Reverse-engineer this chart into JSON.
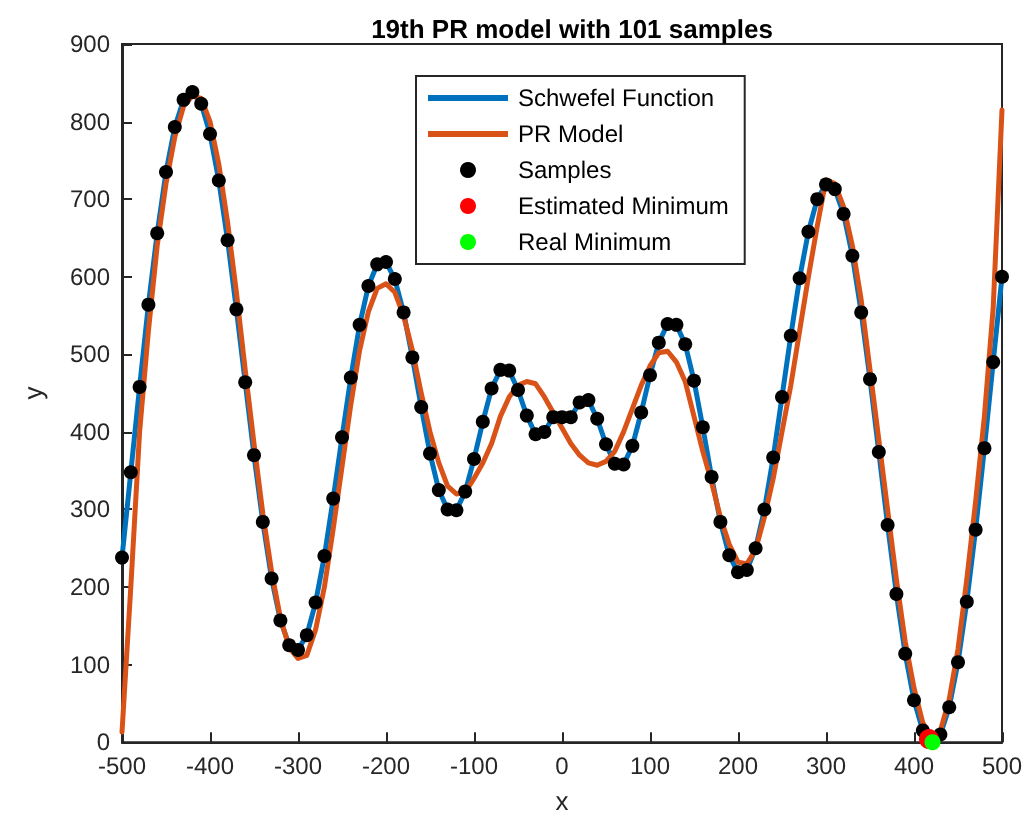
{
  "chart_data": {
    "type": "line",
    "title": "19th PR model with 101 samples",
    "xlabel": "x",
    "ylabel": "y",
    "x": [
      -500,
      -490,
      -480,
      -470,
      -460,
      -450,
      -440,
      -430,
      -420,
      -410,
      -400,
      -390,
      -380,
      -370,
      -360,
      -350,
      -340,
      -330,
      -320,
      -310,
      -300,
      -290,
      -280,
      -270,
      -260,
      -250,
      -240,
      -230,
      -220,
      -210,
      -200,
      -190,
      -180,
      -170,
      -160,
      -150,
      -140,
      -130,
      -120,
      -110,
      -100,
      -90,
      -80,
      -70,
      -60,
      -50,
      -40,
      -30,
      -20,
      -10,
      0,
      10,
      20,
      30,
      40,
      50,
      60,
      70,
      80,
      90,
      100,
      110,
      120,
      130,
      140,
      150,
      160,
      170,
      180,
      190,
      200,
      210,
      220,
      230,
      240,
      250,
      260,
      270,
      280,
      290,
      300,
      310,
      320,
      330,
      340,
      350,
      360,
      370,
      380,
      390,
      400,
      410,
      420,
      430,
      440,
      450,
      460,
      470,
      480,
      490,
      500
    ],
    "series": [
      {
        "name": "Schwefel Function",
        "color": "#0072bd",
        "marker": "none",
        "values": [
          238,
          348,
          458,
          564,
          656,
          735,
          793,
          828,
          838,
          823,
          784,
          724,
          647,
          558,
          464,
          370,
          284,
          211,
          157,
          125,
          119,
          138,
          180,
          240,
          314,
          393,
          470,
          538,
          588,
          616,
          619,
          597,
          554,
          496,
          432,
          372,
          325,
          300,
          299,
          323,
          365,
          413,
          456,
          480,
          479,
          454,
          421,
          397,
          400,
          419,
          419,
          419,
          438,
          441,
          417,
          384,
          359,
          358,
          382,
          425,
          473,
          515,
          539,
          538,
          513,
          466,
          406,
          342,
          284,
          241,
          219,
          222,
          250,
          300,
          367,
          445,
          524,
          598,
          658,
          700,
          719,
          713,
          681,
          627,
          554,
          468,
          374,
          280,
          191,
          114,
          54,
          15,
          0,
          10,
          45,
          103,
          181,
          274,
          379,
          490,
          600
        ]
      },
      {
        "name": "PR Model",
        "color": "#d95319",
        "marker": "none",
        "values": [
          13,
          200,
          400,
          530,
          640,
          720,
          780,
          820,
          833,
          830,
          800,
          745,
          670,
          580,
          480,
          385,
          295,
          220,
          160,
          122,
          108,
          112,
          145,
          200,
          275,
          355,
          435,
          505,
          555,
          585,
          591,
          580,
          550,
          505,
          450,
          400,
          360,
          330,
          320,
          322,
          340,
          360,
          385,
          420,
          445,
          460,
          465,
          462,
          445,
          425,
          405,
          385,
          370,
          360,
          357,
          362,
          375,
          400,
          430,
          460,
          485,
          502,
          504,
          490,
          465,
          420,
          375,
          335,
          290,
          255,
          232,
          230,
          248,
          290,
          340,
          400,
          460,
          530,
          600,
          665,
          725,
          720,
          690,
          640,
          570,
          480,
          390,
          300,
          210,
          130,
          70,
          25,
          5,
          15,
          55,
          120,
          210,
          310,
          420,
          560,
          815
        ]
      },
      {
        "name": "Samples",
        "type": "scatter",
        "color": "#000000",
        "marker": "circle",
        "values": [
          238,
          348,
          458,
          564,
          656,
          735,
          793,
          828,
          838,
          823,
          784,
          724,
          647,
          558,
          464,
          370,
          284,
          211,
          157,
          125,
          119,
          138,
          180,
          240,
          314,
          393,
          470,
          538,
          588,
          616,
          619,
          597,
          554,
          496,
          432,
          372,
          325,
          300,
          299,
          323,
          365,
          413,
          456,
          480,
          479,
          454,
          421,
          397,
          400,
          419,
          419,
          419,
          438,
          441,
          417,
          384,
          359,
          358,
          382,
          425,
          473,
          515,
          539,
          538,
          513,
          466,
          406,
          342,
          284,
          241,
          219,
          222,
          250,
          300,
          367,
          445,
          524,
          598,
          658,
          700,
          719,
          713,
          681,
          627,
          554,
          468,
          374,
          280,
          191,
          114,
          54,
          15,
          null,
          10,
          45,
          103,
          181,
          274,
          379,
          490,
          600
        ]
      },
      {
        "name": "Estimated Minimum",
        "type": "scatter",
        "color": "#ff0000",
        "marker": "circle",
        "x": [
          417
        ],
        "values": [
          4
        ]
      },
      {
        "name": "Real Minimum",
        "type": "scatter",
        "color": "#00ff00",
        "marker": "circle",
        "x": [
          421
        ],
        "values": [
          0
        ]
      }
    ],
    "xlim": [
      -500,
      500
    ],
    "xticks": [
      -500,
      -400,
      -300,
      -200,
      -100,
      0,
      100,
      200,
      300,
      400,
      500
    ],
    "ylim": [
      0,
      900
    ],
    "yticks": [
      0,
      100,
      200,
      300,
      400,
      500,
      600,
      700,
      800,
      900
    ],
    "grid": false,
    "legend": "top"
  }
}
